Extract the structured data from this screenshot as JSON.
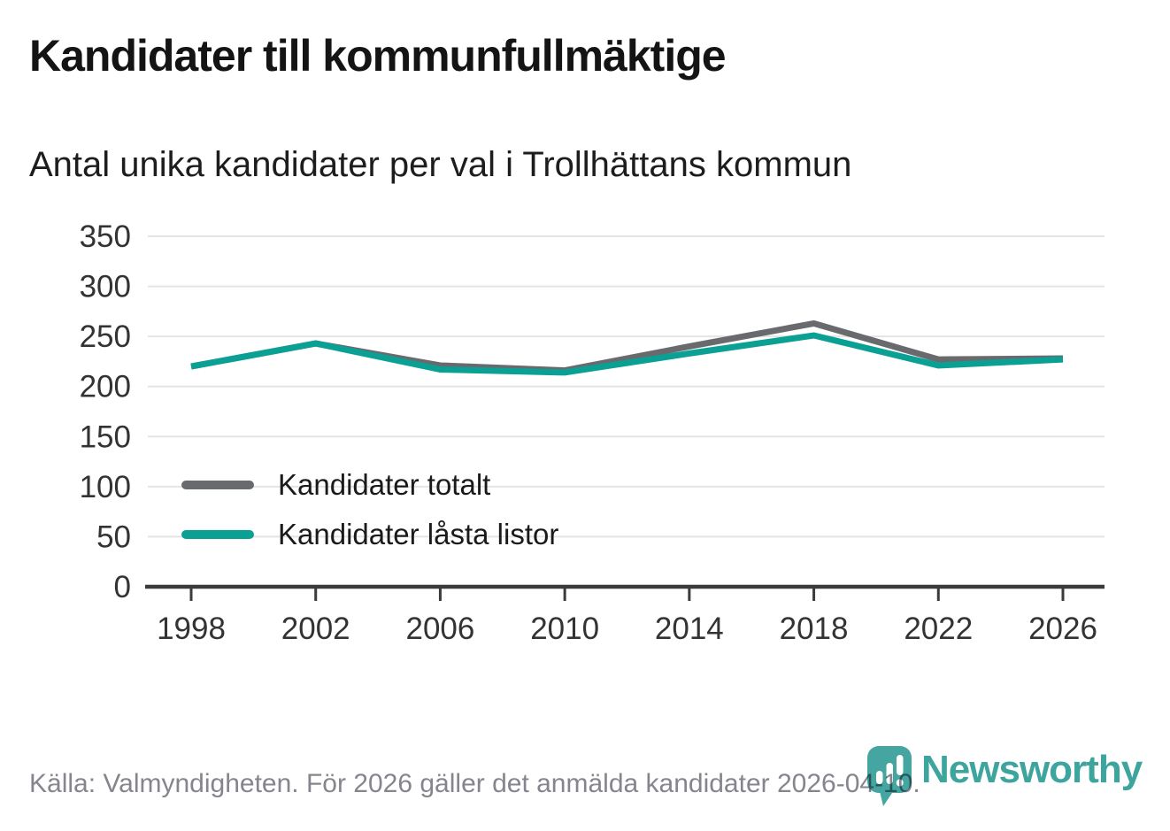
{
  "header": {
    "title": "Kandidater till kommunfullmäktige",
    "subtitle": "Antal unika kandidater per val i Trollhättans kommun"
  },
  "chart_data": {
    "type": "line",
    "x": [
      1998,
      2002,
      2006,
      2010,
      2014,
      2018,
      2022,
      2026
    ],
    "series": [
      {
        "name": "Kandidater totalt",
        "color": "#696a6e",
        "values": [
          220,
          243,
          221,
          216,
          240,
          263,
          227,
          228
        ]
      },
      {
        "name": "Kandidater låsta listor",
        "color": "#0ba094",
        "values": [
          220,
          243,
          217,
          214,
          233,
          251,
          221,
          227
        ]
      }
    ],
    "title": "Kandidater till kommunfullmäktige",
    "subtitle": "Antal unika kandidater per val i Trollhättans kommun",
    "xlabel": "",
    "ylabel": "",
    "ylim": [
      0,
      350
    ],
    "yticks": [
      0,
      50,
      100,
      150,
      200,
      250,
      300,
      350
    ],
    "grid": true,
    "legend_position": "inside-left"
  },
  "footer": {
    "source": "Källa: Valmyndigheten. För 2026 gäller det anmälda kandidater 2026-04-10.",
    "brand": "Newsworthy"
  },
  "colors": {
    "accent_teal": "#0ba094",
    "line_gray": "#696a6e",
    "brand_teal": "#45a5a0",
    "grid": "#e4e4e4",
    "axis": "#3b3b3b",
    "axis_text": "#333333",
    "text_dark": "#1a1a1a",
    "text_muted": "#85858d"
  }
}
